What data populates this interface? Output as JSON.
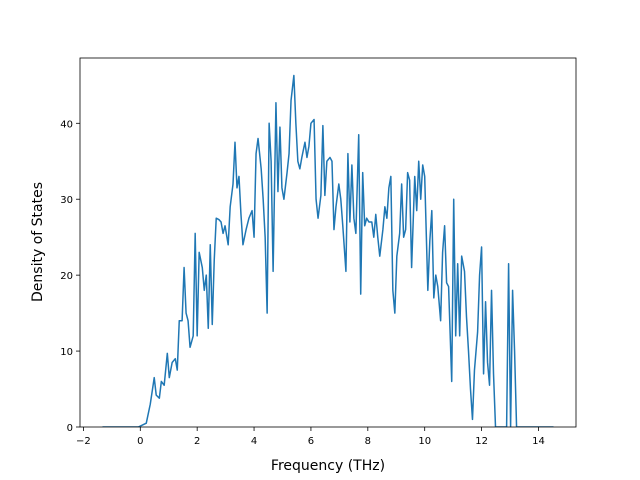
{
  "chart_data": {
    "type": "line",
    "xlabel": "Frequency (THz)",
    "ylabel": "Density of States",
    "color": "#1f77b4",
    "xlim": [
      -2.12,
      15.32
    ],
    "ylim": [
      0,
      48.6
    ],
    "xticks": [
      {
        "value": -2,
        "label": "−2"
      },
      0,
      2,
      4,
      6,
      8,
      10,
      12,
      14
    ],
    "yticks": [
      0,
      10,
      20,
      30,
      40
    ],
    "x": [
      -1.33,
      -0.07,
      0.21,
      0.35,
      0.49,
      0.56,
      0.67,
      0.74,
      0.84,
      0.95,
      1.02,
      1.12,
      1.23,
      1.3,
      1.37,
      1.47,
      1.54,
      1.61,
      1.68,
      1.75,
      1.86,
      1.93,
      2.0,
      2.07,
      2.18,
      2.25,
      2.32,
      2.39,
      2.46,
      2.53,
      2.6,
      2.67,
      2.77,
      2.84,
      2.91,
      2.98,
      3.09,
      3.16,
      3.26,
      3.33,
      3.4,
      3.47,
      3.54,
      3.61,
      3.72,
      3.82,
      3.93,
      4.0,
      4.07,
      4.14,
      4.25,
      4.32,
      4.39,
      4.46,
      4.53,
      4.6,
      4.67,
      4.77,
      4.84,
      4.91,
      4.98,
      5.05,
      5.16,
      5.23,
      5.3,
      5.4,
      5.47,
      5.54,
      5.61,
      5.68,
      5.79,
      5.86,
      5.93,
      6.0,
      6.11,
      6.18,
      6.25,
      6.35,
      6.42,
      6.49,
      6.56,
      6.67,
      6.74,
      6.81,
      6.88,
      6.98,
      7.05,
      7.12,
      7.23,
      7.3,
      7.37,
      7.44,
      7.51,
      7.58,
      7.68,
      7.75,
      7.82,
      7.89,
      7.96,
      8.04,
      8.14,
      8.21,
      8.28,
      8.35,
      8.42,
      8.53,
      8.6,
      8.67,
      8.74,
      8.81,
      8.88,
      8.95,
      9.02,
      9.12,
      9.19,
      9.26,
      9.33,
      9.4,
      9.47,
      9.54,
      9.65,
      9.72,
      9.79,
      9.86,
      9.93,
      10.0,
      10.11,
      10.18,
      10.25,
      10.32,
      10.39,
      10.46,
      10.56,
      10.63,
      10.7,
      10.77,
      10.84,
      10.95,
      11.02,
      11.09,
      11.16,
      11.23,
      11.3,
      11.4,
      11.47,
      11.54,
      11.61,
      11.68,
      11.75,
      11.86,
      11.93,
      12.0,
      12.07,
      12.14,
      12.21,
      12.28,
      12.35,
      12.42,
      12.49,
      12.56,
      12.63,
      12.74,
      12.81,
      12.88,
      12.95,
      13.02,
      13.09,
      13.16,
      13.23,
      13.3,
      14.53
    ],
    "values": [
      0,
      0,
      0.5,
      3,
      6.5,
      4.2,
      3.8,
      6,
      5.5,
      9.7,
      6.5,
      8.5,
      9,
      7.5,
      14,
      14,
      21,
      15,
      14,
      10.5,
      12,
      25.5,
      12,
      23,
      21,
      18,
      20,
      13,
      24,
      13.5,
      22,
      27.5,
      27.3,
      27,
      25.5,
      26.5,
      24,
      29,
      32,
      37.5,
      31.5,
      33,
      28,
      24,
      26,
      27.5,
      28.5,
      25,
      36,
      38,
      34,
      30,
      25,
      15,
      40,
      35,
      20.5,
      42.7,
      31,
      39.5,
      31.5,
      30,
      33.5,
      36,
      43,
      46.3,
      40,
      35,
      34,
      35.5,
      37.5,
      35.5,
      37,
      40,
      40.5,
      30,
      27.5,
      30.5,
      39.7,
      30.5,
      35,
      35.5,
      35,
      26,
      29,
      32,
      30,
      26.5,
      20.5,
      36,
      27,
      34.5,
      27.5,
      25.5,
      38.5,
      17.5,
      33.5,
      26.5,
      27.5,
      27,
      27,
      25,
      28,
      25,
      22.5,
      26,
      29,
      27.5,
      31.5,
      33,
      18,
      15,
      22.5,
      25.5,
      32,
      25,
      26,
      33.5,
      32.5,
      21,
      33,
      28.5,
      35,
      30,
      34.5,
      33,
      18,
      24.5,
      28.5,
      17,
      20,
      18.5,
      14,
      23,
      26.5,
      19,
      18.5,
      6,
      30,
      12,
      21.5,
      12,
      22.5,
      20.5,
      14.5,
      10,
      5,
      1,
      7.5,
      12.5,
      20,
      23.7,
      7,
      16.5,
      8.5,
      5.5,
      18,
      7,
      0,
      0,
      0,
      0,
      0,
      0,
      21.5,
      0,
      18,
      10,
      0,
      0,
      0
    ]
  }
}
